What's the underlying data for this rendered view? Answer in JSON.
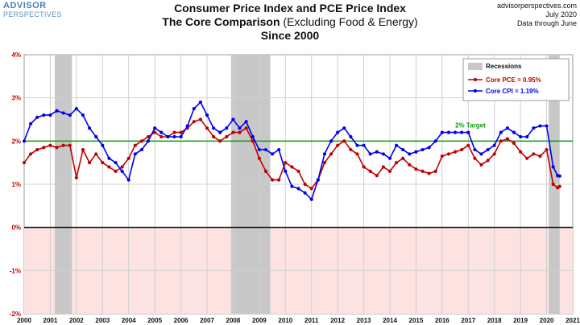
{
  "logo": {
    "main": "ADVISOR",
    "sub": "PERSPECTIVES"
  },
  "header": {
    "title1": "Consumer Price Index and PCE Price Index",
    "title2_bold": "The Core Comparison",
    "title2_normal": "(Excluding Food & Energy)",
    "title3": "Since 2000"
  },
  "source": {
    "site": "advisorperspectives.com",
    "date": "July 2020",
    "note": "Data through June"
  },
  "colors": {
    "pce": "#c00000",
    "cpi": "#0000ee",
    "target": "#0a9a0a",
    "recession": "#c8c8c8",
    "negative_zone": "#fde2e2",
    "grid": "#d0d0d0"
  },
  "chart_data": {
    "type": "line",
    "xlim": [
      2000,
      2021
    ],
    "ylim": [
      -2,
      4
    ],
    "x_ticks": [
      "2000",
      "2001",
      "2002",
      "2003",
      "2004",
      "2005",
      "2006",
      "2007",
      "2008",
      "2009",
      "2010",
      "2011",
      "2012",
      "2013",
      "2014",
      "2015",
      "2016",
      "2017",
      "2018",
      "2019",
      "2020",
      "2021"
    ],
    "y_ticks": [
      "-2%",
      "-1%",
      "0%",
      "1%",
      "2%",
      "3%",
      "4%"
    ],
    "target_value": 2,
    "target_label": "2% Target",
    "legend": {
      "title": "Recessions",
      "placement": "top-right"
    },
    "recessions": [
      [
        2001.17,
        2001.83
      ],
      [
        2007.92,
        2009.42
      ],
      [
        2020.08,
        2020.5
      ]
    ],
    "series": [
      {
        "name": "Core PCE = 0.95%",
        "x": [
          2000.0,
          2000.25,
          2000.5,
          2000.75,
          2001.0,
          2001.25,
          2001.5,
          2001.75,
          2002.0,
          2002.25,
          2002.5,
          2002.75,
          2003.0,
          2003.25,
          2003.5,
          2003.75,
          2004.0,
          2004.25,
          2004.5,
          2004.75,
          2005.0,
          2005.25,
          2005.5,
          2005.75,
          2006.0,
          2006.25,
          2006.5,
          2006.75,
          2007.0,
          2007.25,
          2007.5,
          2007.75,
          2008.0,
          2008.25,
          2008.5,
          2008.75,
          2009.0,
          2009.25,
          2009.5,
          2009.75,
          2010.0,
          2010.25,
          2010.5,
          2010.75,
          2011.0,
          2011.25,
          2011.5,
          2011.75,
          2012.0,
          2012.25,
          2012.5,
          2012.75,
          2013.0,
          2013.25,
          2013.5,
          2013.75,
          2014.0,
          2014.25,
          2014.5,
          2014.75,
          2015.0,
          2015.25,
          2015.5,
          2015.75,
          2016.0,
          2016.25,
          2016.5,
          2016.75,
          2017.0,
          2017.25,
          2017.5,
          2017.75,
          2018.0,
          2018.25,
          2018.5,
          2018.75,
          2019.0,
          2019.25,
          2019.5,
          2019.75,
          2020.0,
          2020.25,
          2020.42,
          2020.5
        ],
        "values": [
          1.5,
          1.7,
          1.8,
          1.85,
          1.9,
          1.85,
          1.9,
          1.9,
          1.15,
          1.8,
          1.5,
          1.7,
          1.5,
          1.4,
          1.3,
          1.4,
          1.6,
          1.9,
          2.0,
          2.1,
          2.2,
          2.1,
          2.1,
          2.2,
          2.2,
          2.3,
          2.45,
          2.5,
          2.3,
          2.1,
          2.0,
          2.1,
          2.2,
          2.2,
          2.3,
          2.0,
          1.6,
          1.3,
          1.1,
          1.1,
          1.5,
          1.4,
          1.3,
          1.0,
          0.9,
          1.1,
          1.5,
          1.7,
          1.9,
          2.0,
          1.8,
          1.7,
          1.4,
          1.3,
          1.2,
          1.4,
          1.3,
          1.5,
          1.6,
          1.45,
          1.35,
          1.3,
          1.25,
          1.3,
          1.65,
          1.7,
          1.75,
          1.8,
          1.9,
          1.6,
          1.45,
          1.55,
          1.7,
          2.0,
          2.05,
          1.95,
          1.75,
          1.6,
          1.7,
          1.65,
          1.8,
          1.0,
          0.92,
          0.95
        ]
      },
      {
        "name": "Core CPI = 1.19%",
        "x": [
          2000.0,
          2000.25,
          2000.5,
          2000.75,
          2001.0,
          2001.25,
          2001.5,
          2001.75,
          2002.0,
          2002.25,
          2002.5,
          2002.75,
          2003.0,
          2003.25,
          2003.5,
          2003.75,
          2004.0,
          2004.25,
          2004.5,
          2004.75,
          2005.0,
          2005.25,
          2005.5,
          2005.75,
          2006.0,
          2006.25,
          2006.5,
          2006.75,
          2007.0,
          2007.25,
          2007.5,
          2007.75,
          2008.0,
          2008.25,
          2008.5,
          2008.75,
          2009.0,
          2009.25,
          2009.5,
          2009.75,
          2010.0,
          2010.25,
          2010.5,
          2010.75,
          2011.0,
          2011.25,
          2011.5,
          2011.75,
          2012.0,
          2012.25,
          2012.5,
          2012.75,
          2013.0,
          2013.25,
          2013.5,
          2013.75,
          2014.0,
          2014.25,
          2014.5,
          2014.75,
          2015.0,
          2015.25,
          2015.5,
          2015.75,
          2016.0,
          2016.25,
          2016.5,
          2016.75,
          2017.0,
          2017.25,
          2017.5,
          2017.75,
          2018.0,
          2018.25,
          2018.5,
          2018.75,
          2019.0,
          2019.25,
          2019.5,
          2019.75,
          2020.0,
          2020.25,
          2020.42,
          2020.5
        ],
        "values": [
          2.0,
          2.4,
          2.55,
          2.6,
          2.6,
          2.7,
          2.65,
          2.6,
          2.75,
          2.6,
          2.3,
          2.1,
          1.9,
          1.6,
          1.5,
          1.3,
          1.1,
          1.7,
          1.8,
          2.0,
          2.3,
          2.2,
          2.1,
          2.1,
          2.1,
          2.35,
          2.75,
          2.9,
          2.6,
          2.3,
          2.2,
          2.3,
          2.5,
          2.3,
          2.45,
          2.1,
          1.8,
          1.8,
          1.7,
          1.8,
          1.3,
          0.95,
          0.9,
          0.8,
          0.65,
          1.1,
          1.7,
          2.0,
          2.2,
          2.3,
          2.1,
          1.9,
          1.9,
          1.7,
          1.75,
          1.7,
          1.6,
          1.9,
          1.8,
          1.7,
          1.75,
          1.8,
          1.85,
          2.0,
          2.2,
          2.2,
          2.2,
          2.2,
          2.2,
          1.8,
          1.7,
          1.8,
          1.9,
          2.2,
          2.3,
          2.2,
          2.1,
          2.1,
          2.3,
          2.35,
          2.35,
          1.4,
          1.2,
          1.19
        ]
      }
    ]
  }
}
